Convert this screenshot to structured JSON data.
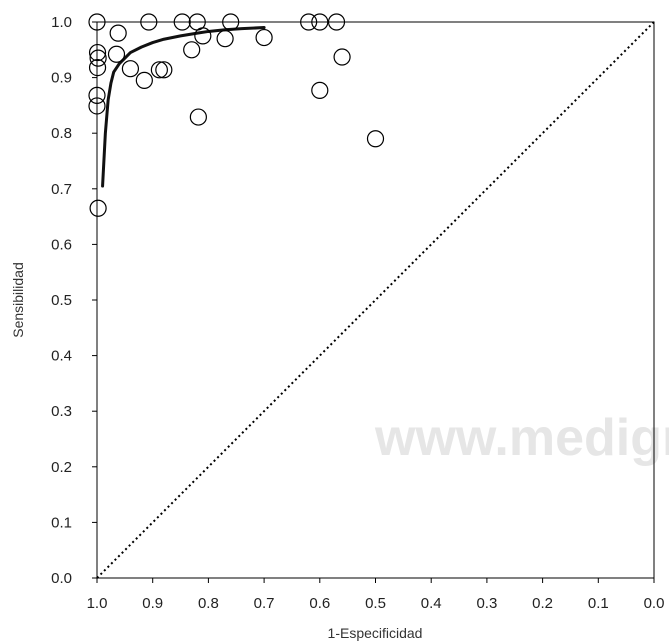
{
  "chart_data": {
    "type": "scatter",
    "xlabel": "1-Especificidad",
    "ylabel": "Sensibilidad",
    "xlim": [
      1.0,
      0.0
    ],
    "ylim": [
      0.0,
      1.0
    ],
    "x_ticks": [
      "1.0",
      "0.9",
      "0.8",
      "0.7",
      "0.6",
      "0.5",
      "0.4",
      "0.3",
      "0.2",
      "0.1",
      "0.0"
    ],
    "y_ticks": [
      "0.0",
      "0.1",
      "0.2",
      "0.3",
      "0.4",
      "0.5",
      "0.6",
      "0.7",
      "0.8",
      "0.9",
      "1.0"
    ],
    "grid": false,
    "watermark": "www.medigraphic",
    "points": [
      {
        "x": 1.0,
        "y": 1.0
      },
      {
        "x": 0.999,
        "y": 0.945
      },
      {
        "x": 0.998,
        "y": 0.935
      },
      {
        "x": 0.999,
        "y": 0.918
      },
      {
        "x": 1.0,
        "y": 0.868
      },
      {
        "x": 1.0,
        "y": 0.849
      },
      {
        "x": 0.998,
        "y": 0.665
      },
      {
        "x": 0.962,
        "y": 0.98
      },
      {
        "x": 0.965,
        "y": 0.942
      },
      {
        "x": 0.94,
        "y": 0.916
      },
      {
        "x": 0.907,
        "y": 1.0
      },
      {
        "x": 0.915,
        "y": 0.895
      },
      {
        "x": 0.888,
        "y": 0.914
      },
      {
        "x": 0.88,
        "y": 0.914
      },
      {
        "x": 0.847,
        "y": 1.0
      },
      {
        "x": 0.82,
        "y": 1.0
      },
      {
        "x": 0.83,
        "y": 0.95
      },
      {
        "x": 0.81,
        "y": 0.975
      },
      {
        "x": 0.818,
        "y": 0.829
      },
      {
        "x": 0.76,
        "y": 1.0
      },
      {
        "x": 0.77,
        "y": 0.97
      },
      {
        "x": 0.7,
        "y": 0.972
      },
      {
        "x": 0.62,
        "y": 1.0
      },
      {
        "x": 0.6,
        "y": 1.0
      },
      {
        "x": 0.57,
        "y": 1.0
      },
      {
        "x": 0.6,
        "y": 0.877
      },
      {
        "x": 0.56,
        "y": 0.937
      },
      {
        "x": 0.5,
        "y": 0.79
      }
    ],
    "curve": {
      "name": "",
      "x": [
        0.99,
        0.985,
        0.98,
        0.975,
        0.97,
        0.96,
        0.95,
        0.94,
        0.92,
        0.9,
        0.88,
        0.85,
        0.82,
        0.8,
        0.77,
        0.74,
        0.7
      ],
      "y": [
        0.705,
        0.8,
        0.86,
        0.89,
        0.91,
        0.925,
        0.935,
        0.945,
        0.955,
        0.963,
        0.969,
        0.975,
        0.98,
        0.983,
        0.986,
        0.988,
        0.99
      ]
    },
    "reference_line": {
      "x": [
        1.0,
        0.0
      ],
      "y": [
        0.0,
        1.0
      ],
      "style": "dotted"
    }
  }
}
